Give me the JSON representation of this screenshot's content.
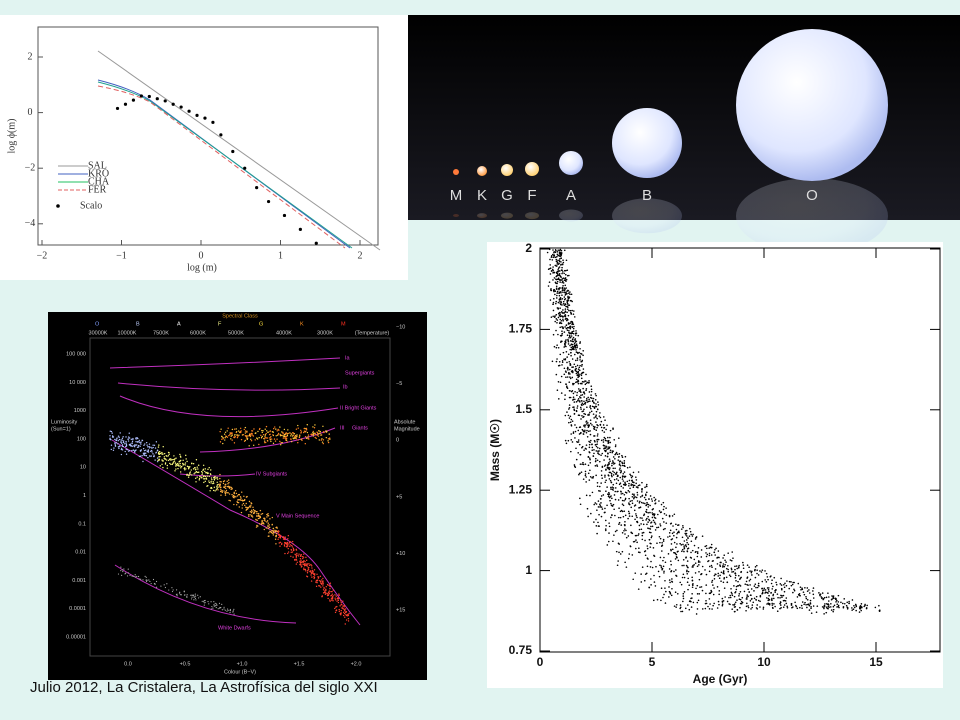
{
  "caption": "Julio 2012, La Cristalera, La Astrofísica del siglo XXI",
  "imf_plot": {
    "x_label": "log (m)",
    "y_label": "log ϕ(m)",
    "x_ticks": [
      "−2",
      "−1",
      "0",
      "1",
      "2"
    ],
    "y_ticks": [
      "2",
      "0",
      "−2",
      "−4"
    ],
    "legend": [
      "SAL",
      "KRO",
      "CHA",
      "FER",
      "Scalo"
    ]
  },
  "star_classes": [
    "M",
    "K",
    "G",
    "F",
    "A",
    "B",
    "O"
  ],
  "hr_diagram": {
    "title": "Spectral Class",
    "classes": [
      "O",
      "B",
      "A",
      "F",
      "G",
      "K",
      "M"
    ],
    "temperatures": [
      "30000K",
      "10000K",
      "7500K",
      "6000K",
      "5000K",
      "4000K",
      "3000K",
      "(Temperature)"
    ],
    "luminosity_label": [
      "Luminosity",
      "(Sun=1)"
    ],
    "luminosity_ticks": [
      "100 000",
      "10 000",
      "1000",
      "100",
      "10",
      "1",
      "0.1",
      "0.01",
      "0.001",
      "0.0001",
      "0.00001"
    ],
    "magnitude_label": [
      "Absolute",
      "Magnitude"
    ],
    "magnitude_ticks": [
      "−10",
      "−5",
      "0",
      "+5",
      "+10",
      "+15"
    ],
    "colour_ticks": [
      "0.0",
      "+0.5",
      "+1.0",
      "+1.5",
      "+2.0"
    ],
    "colour_label": "Colour (B−V)",
    "regions": [
      "Ia",
      "Supergiants",
      "Ib",
      "II Bright Giants",
      "III",
      "Giants",
      "IV Subgiants",
      "V Main Sequence",
      "White Dwarfs"
    ]
  },
  "mass_age_plot": {
    "x_label": "Age (Gyr)",
    "y_label": "Mass (M☉)",
    "x_ticks": [
      "0",
      "5",
      "10",
      "15"
    ],
    "y_ticks": [
      "0.75",
      "1",
      "1.25",
      "1.5",
      "1.75",
      "2"
    ]
  }
}
